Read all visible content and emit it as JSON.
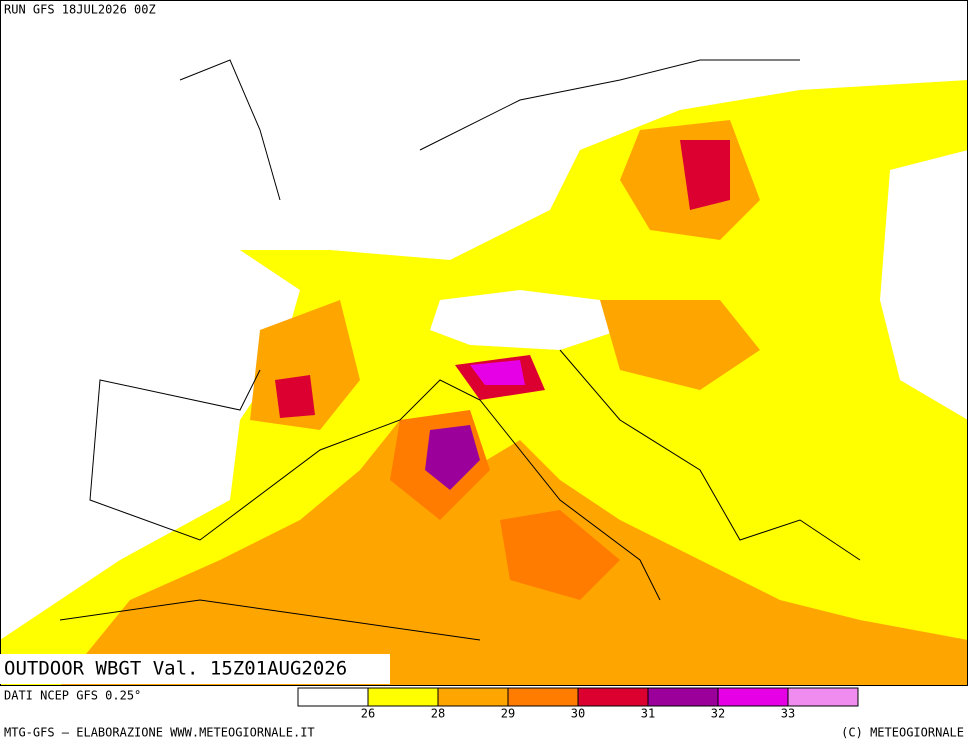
{
  "header": {
    "run": "RUN GFS 18JUL2026 00Z"
  },
  "map": {
    "title": "OUTDOOR WBGT Val. 15Z01AUG2026"
  },
  "legend": {
    "source": "DATI NCEP GFS 0.25°",
    "colors": [
      "#ffffff",
      "#ffff00",
      "#ffa500",
      "#ff7c00",
      "#dc0030",
      "#9b009b",
      "#e600e6",
      "#f08cf0"
    ],
    "ticks": [
      26,
      28,
      29,
      30,
      31,
      32,
      33
    ]
  },
  "footer": {
    "left": "MTG-GFS — ELABORAZIONE WWW.METEOGIORNALE.IT",
    "right": "(C) METEOGIORNALE"
  }
}
